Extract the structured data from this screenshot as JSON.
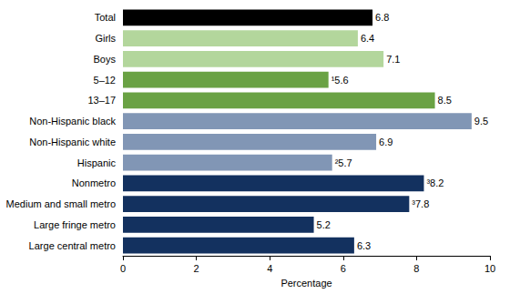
{
  "chart_data": {
    "type": "bar",
    "orientation": "horizontal",
    "categories": [
      "Total",
      "Girls",
      "Boys",
      "5–12",
      "13–17",
      "Non-Hispanic black",
      "Non-Hispanic white",
      "Hispanic",
      "Nonmetro",
      "Medium and small metro",
      "Large fringe metro",
      "Large central metro"
    ],
    "values": [
      6.8,
      6.4,
      7.1,
      5.6,
      8.5,
      9.5,
      6.9,
      5.7,
      8.2,
      7.8,
      5.2,
      6.3
    ],
    "value_labels": [
      "6.8",
      "6.4",
      "7.1",
      "¹5.6",
      "8.5",
      "9.5",
      "6.9",
      "²5.7",
      "³8.2",
      "³7.8",
      "5.2",
      "6.3"
    ],
    "colors": [
      "#000000",
      "#b3d69c",
      "#b3d69c",
      "#6aa244",
      "#6aa244",
      "#8196b5",
      "#8196b5",
      "#8196b5",
      "#13315f",
      "#13315f",
      "#13315f",
      "#13315f"
    ],
    "xlabel": "Percentage",
    "xlim": [
      0,
      10
    ],
    "xticks": [
      0,
      2,
      4,
      6,
      8,
      10
    ],
    "grid": false,
    "data_labels": true
  }
}
